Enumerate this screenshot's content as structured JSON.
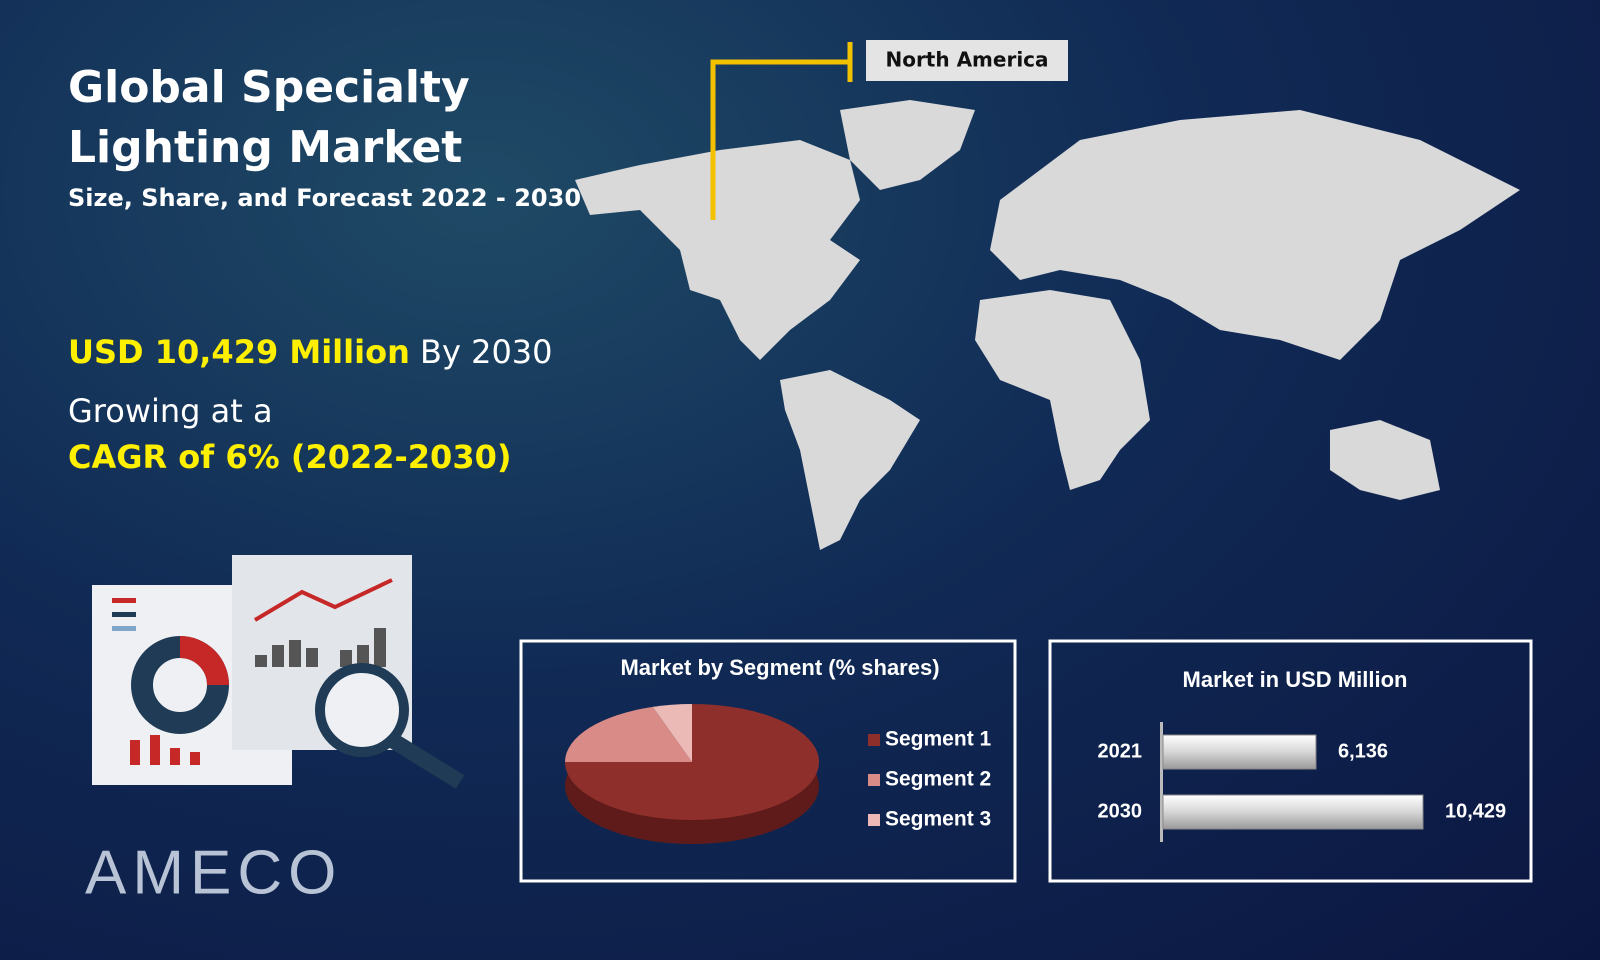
{
  "header": {
    "title": "Global Specialty Lighting Market",
    "subtitle": "Size, Share, and Forecast 2022 - 2030"
  },
  "highlights": {
    "market_value": "USD 10,429 Million",
    "market_year": "By 2030",
    "growth_intro": "Growing at a",
    "cagr": "CAGR of 6% (2022-2030)"
  },
  "map_callout": "North America",
  "logo": "AMECO",
  "chart_data": [
    {
      "type": "pie",
      "title": "Market by Segment  (% shares)",
      "categories": [
        "Segment 1",
        "Segment 2",
        "Segment 3"
      ],
      "values": [
        75,
        20,
        5
      ],
      "colors": [
        "#8e2f2c",
        "#d98b88",
        "#ebb9b6"
      ]
    },
    {
      "type": "hbar",
      "title": "Market in USD Million",
      "categories": [
        "2021",
        "2030"
      ],
      "values": [
        6136,
        10429
      ],
      "value_labels": [
        "6,136",
        "10,429"
      ],
      "color": "#e8e8e8"
    }
  ]
}
